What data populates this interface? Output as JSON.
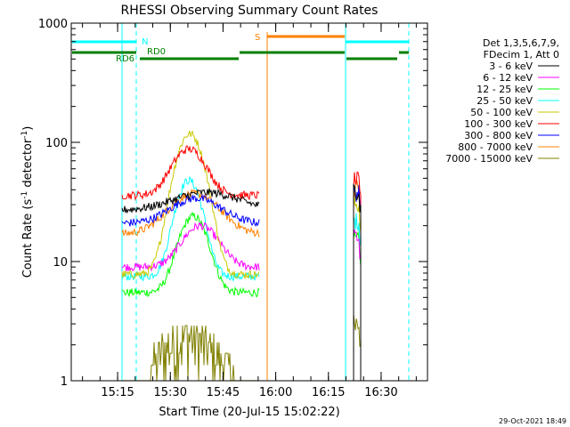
{
  "chart_data": {
    "type": "line",
    "title": "RHESSI Observing Summary Count Rates",
    "xlabel": "Start Time (20-Jul-15 15:02:22)",
    "ylabel_parts": [
      "Count Rate (s",
      "-1",
      " detector",
      "-1",
      ")"
    ],
    "yscale": "log",
    "ylim": [
      1,
      1000
    ],
    "xlim_minutes": [
      5,
      40
    ],
    "y_ticks": [
      {
        "value": 1,
        "label": "1"
      },
      {
        "value": 10,
        "label": "10"
      },
      {
        "value": 100,
        "label": "100"
      },
      {
        "value": 1000,
        "label": "1000"
      }
    ],
    "x_ticks": [
      {
        "t": 15.25,
        "label": "15:15"
      },
      {
        "t": 15.5,
        "label": "15:30"
      },
      {
        "t": 15.75,
        "label": "15:45"
      },
      {
        "t": 16.0,
        "label": "16:00"
      },
      {
        "t": 16.25,
        "label": "16:15"
      },
      {
        "t": 16.5,
        "label": "16:30"
      }
    ],
    "x_range_hours": [
      15.03,
      16.72
    ],
    "legend_header": [
      "Det 1,3,5,6,7,9,",
      "FDecim 1, Att 0"
    ],
    "series": [
      {
        "name": "3 - 6 keV",
        "color": "#000000",
        "key": "s3_6"
      },
      {
        "name": "6 - 12 keV",
        "color": "#ff00ff",
        "key": "s6_12"
      },
      {
        "name": "12 - 25 keV",
        "color": "#00ff00",
        "key": "s12_25"
      },
      {
        "name": "25 - 50 keV",
        "color": "#00ffff",
        "key": "s25_50"
      },
      {
        "name": "50 - 100 keV",
        "color": "#c8c800",
        "key": "s50_100"
      },
      {
        "name": "100 - 300 keV",
        "color": "#ff0000",
        "key": "s100_300"
      },
      {
        "name": "300 - 800 keV",
        "color": "#0000ff",
        "key": "s300_800"
      },
      {
        "name": "800 - 7000 keV",
        "color": "#ff8000",
        "key": "s800_7000"
      },
      {
        "name": "7000 - 15000 keV",
        "color": "#808000",
        "key": "s7000_15000"
      }
    ],
    "annotations": {
      "N": {
        "label": "N",
        "color": "#00ffff"
      },
      "S": {
        "label": "S",
        "color": "#ff8000"
      },
      "RD0": {
        "label": "RD0",
        "color": "#008000"
      },
      "RD6": {
        "label": "RD6",
        "color": "#008000"
      }
    },
    "timestamp": "29-Oct-2021 18:49"
  }
}
